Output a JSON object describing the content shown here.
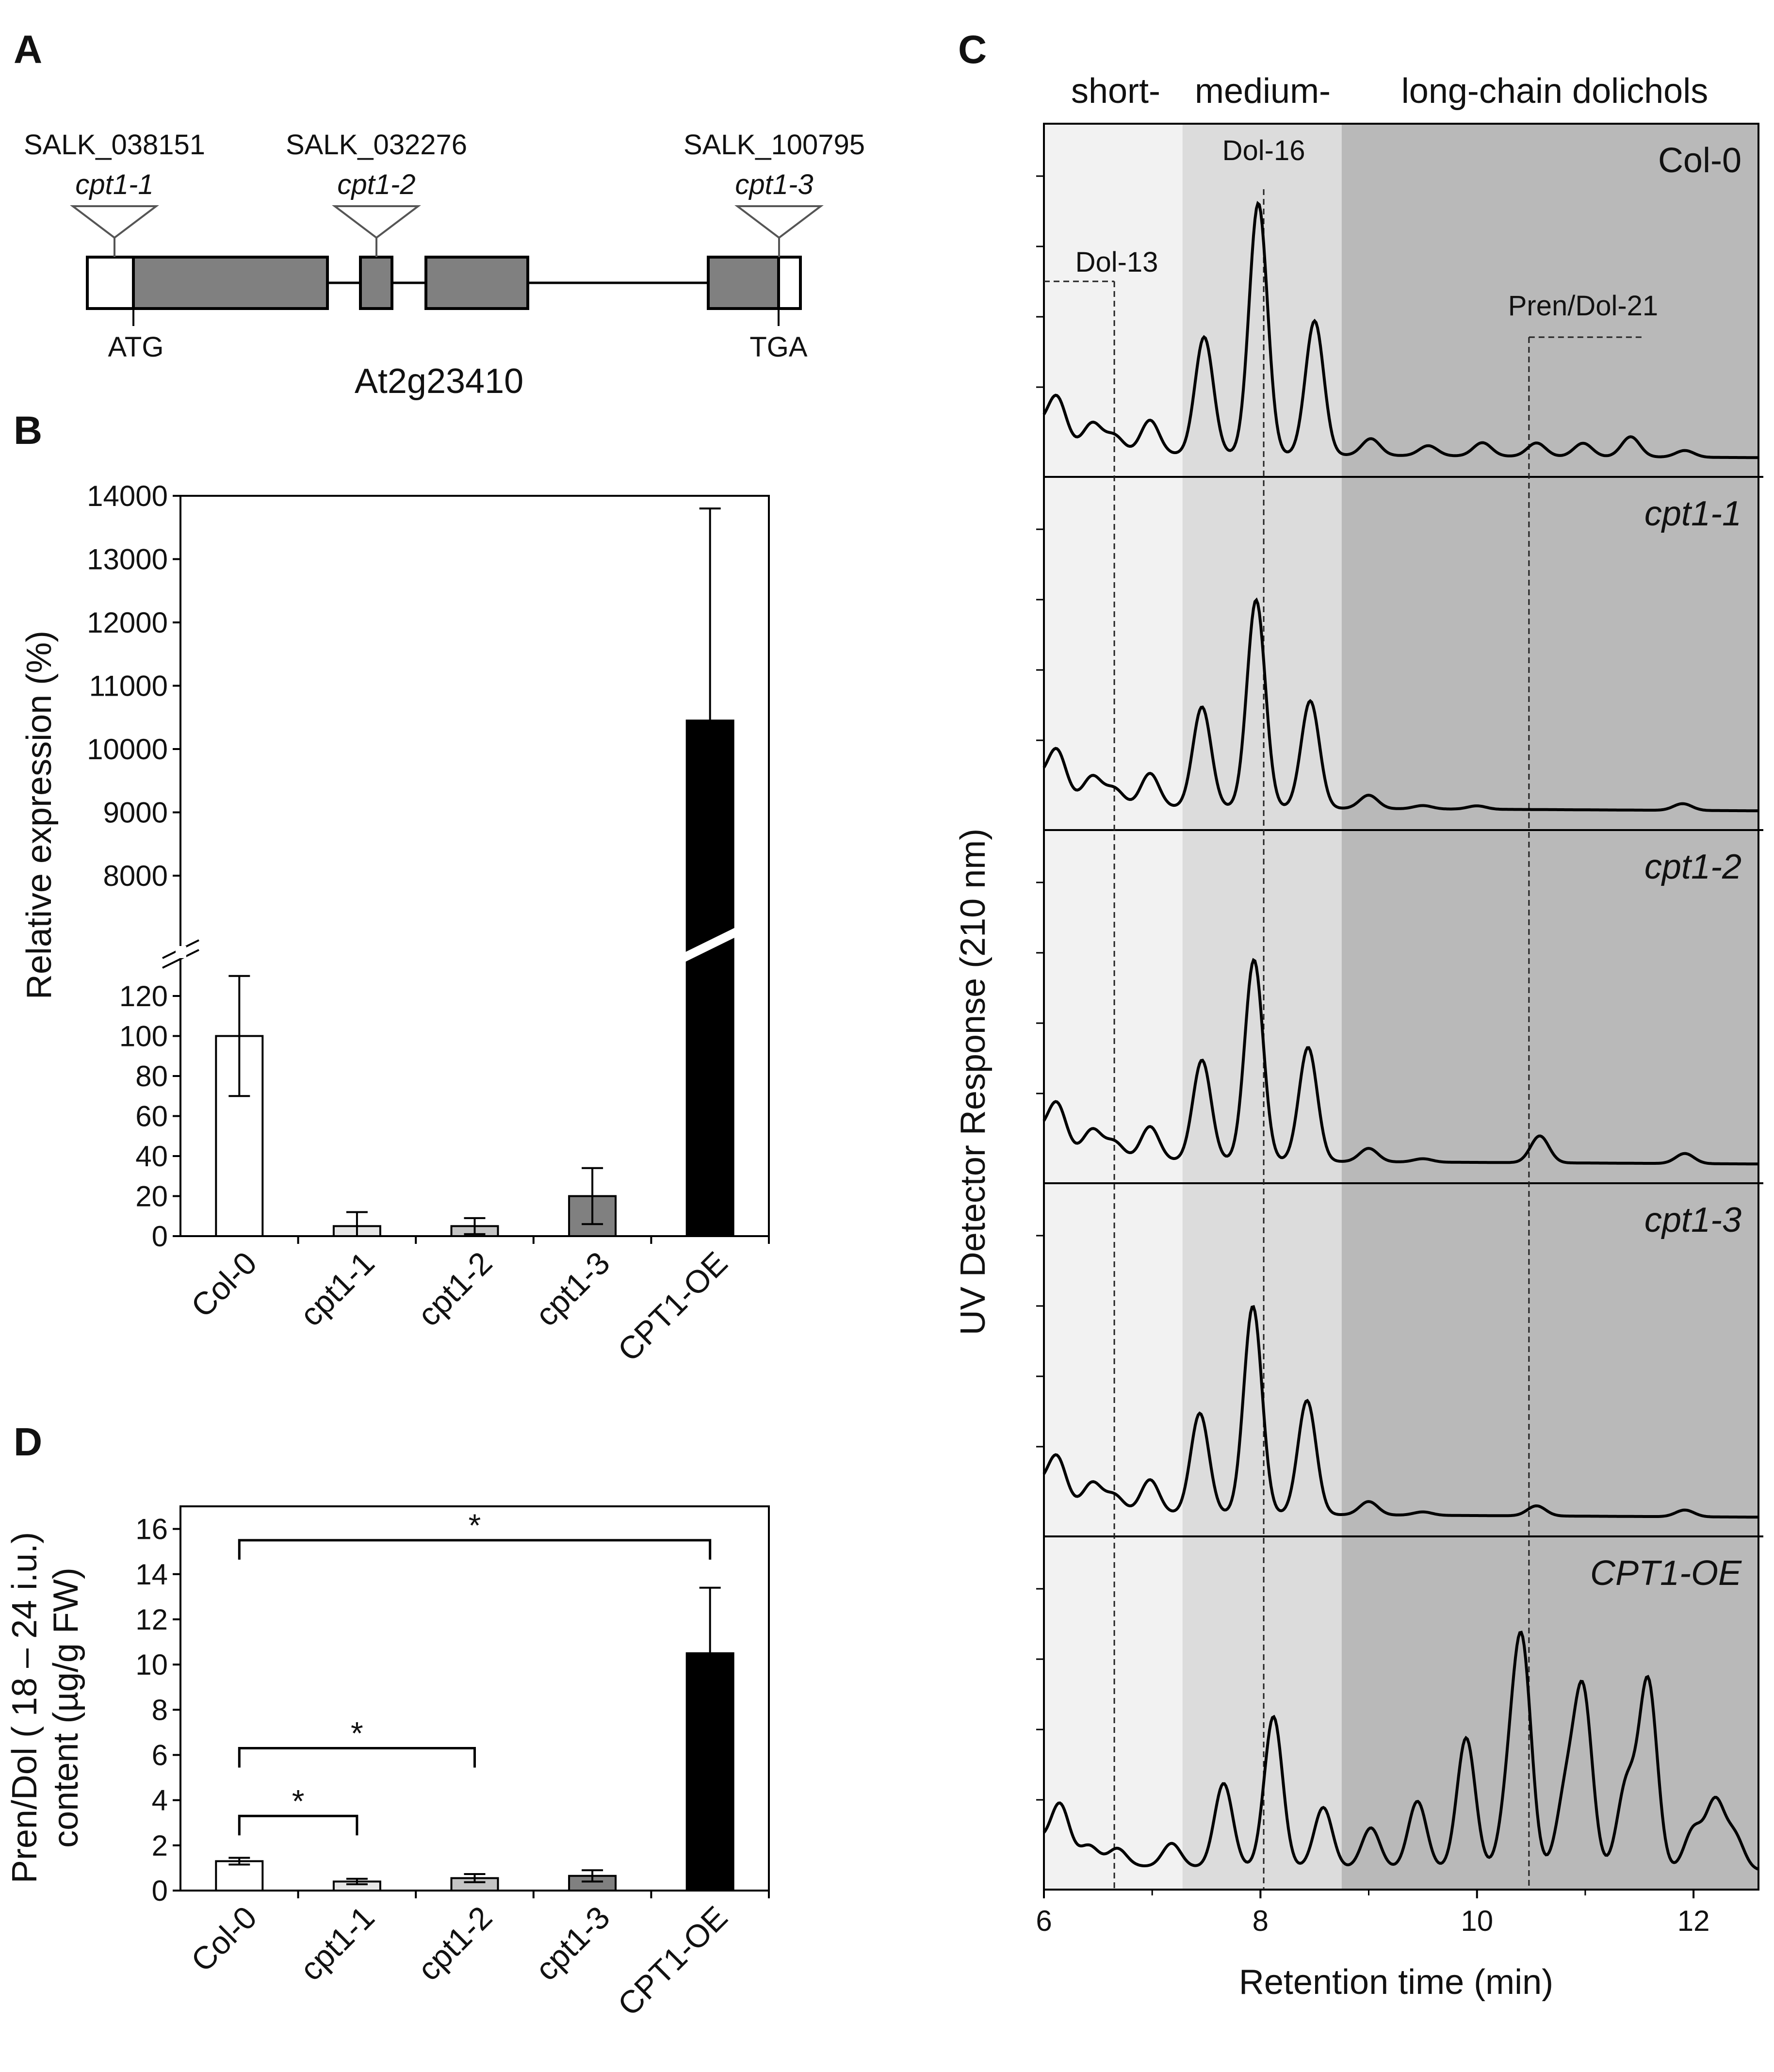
{
  "panel_labels": {
    "a": "A",
    "b": "B",
    "c": "C",
    "d": "D"
  },
  "panel_a": {
    "gene": "At2g23410",
    "start_codon": "ATG",
    "stop_codon": "TGA",
    "insertions": [
      {
        "line": "SALK_038151",
        "allele": "cpt1-1"
      },
      {
        "line": "SALK_032276",
        "allele": "cpt1-2"
      },
      {
        "line": "SALK_100795",
        "allele": "cpt1-3"
      }
    ],
    "colors": {
      "exon": "#808080",
      "utr": "#ffffff"
    }
  },
  "panel_c": {
    "region_labels": {
      "short": "short-",
      "medium": "medium-",
      "long": "long-chain dolichols"
    },
    "peak_labels": {
      "dol13": "Dol-13",
      "dol16": "Dol-16",
      "pren21": "Pren/Dol-21"
    },
    "traces": [
      {
        "label": "Col-0",
        "italic": false
      },
      {
        "label": "cpt1-1",
        "italic": true
      },
      {
        "label": "cpt1-2",
        "italic": true
      },
      {
        "label": "cpt1-3",
        "italic": true
      },
      {
        "label": "CPT1-OE",
        "italic": true
      }
    ],
    "colors": {
      "short": "#f2f2f2",
      "medium": "#dcdcdc",
      "long": "#b9b9b9"
    }
  },
  "chart_data": [
    {
      "type": "bar",
      "panel": "B",
      "ylabel": "Relative expression  (%)",
      "categories": [
        "Col-0",
        "cpt1-1",
        "cpt1-2",
        "cpt1-3",
        "CPT1-OE"
      ],
      "values": [
        100,
        5,
        5,
        20,
        10450
      ],
      "errors": [
        30,
        7,
        4,
        14,
        3350
      ],
      "colors": [
        "#ffffff",
        "#e6e6e6",
        "#c4c4c4",
        "#808080",
        "#000000"
      ],
      "axis_break": {
        "lower_ylim": [
          0,
          130
        ],
        "upper_ylim": [
          7500,
          14000
        ]
      },
      "lower_ticks": [
        "0",
        "20",
        "40",
        "60",
        "80",
        "100",
        "120"
      ],
      "upper_ticks": [
        "8000",
        "9000",
        "10000",
        "11000",
        "12000",
        "13000",
        "14000"
      ]
    },
    {
      "type": "line",
      "panel": "C",
      "xlabel": "Retention time (min)",
      "ylabel": "UV Detector Response (210 nm)",
      "xlim": [
        6,
        12.6
      ],
      "x_ticks": [
        "6",
        "8",
        "10",
        "12"
      ],
      "regions": [
        {
          "name": "short-chain",
          "from": 6,
          "to": 7.28
        },
        {
          "name": "medium-chain",
          "from": 7.28,
          "to": 8.75
        },
        {
          "name": "long-chain",
          "from": 8.75,
          "to": 12.6
        }
      ],
      "reference_lines": [
        {
          "name": "Dol-13",
          "x": 6.65
        },
        {
          "name": "Dol-16",
          "x": 8.03
        },
        {
          "name": "Pren/Dol-21",
          "x": 10.48
        }
      ],
      "series": [
        {
          "name": "Col-0",
          "peaks": [
            {
              "x": 6.12,
              "h": 0.13
            },
            {
              "x": 6.45,
              "h": 0.08
            },
            {
              "x": 6.65,
              "h": 0.05
            },
            {
              "x": 6.98,
              "h": 0.1
            },
            {
              "x": 7.48,
              "h": 0.35
            },
            {
              "x": 7.98,
              "h": 0.75
            },
            {
              "x": 8.5,
              "h": 0.4
            },
            {
              "x": 9.02,
              "h": 0.05
            },
            {
              "x": 9.55,
              "h": 0.03
            },
            {
              "x": 10.05,
              "h": 0.04
            },
            {
              "x": 10.55,
              "h": 0.04
            },
            {
              "x": 10.98,
              "h": 0.04
            },
            {
              "x": 11.42,
              "h": 0.06
            },
            {
              "x": 11.92,
              "h": 0.02
            }
          ]
        },
        {
          "name": "cpt1-1",
          "peaks": [
            {
              "x": 6.12,
              "h": 0.13
            },
            {
              "x": 6.45,
              "h": 0.08
            },
            {
              "x": 6.65,
              "h": 0.05
            },
            {
              "x": 6.98,
              "h": 0.1
            },
            {
              "x": 7.46,
              "h": 0.3
            },
            {
              "x": 7.96,
              "h": 0.62
            },
            {
              "x": 8.46,
              "h": 0.32
            },
            {
              "x": 9.0,
              "h": 0.04
            },
            {
              "x": 9.5,
              "h": 0.01
            },
            {
              "x": 10.0,
              "h": 0.01
            },
            {
              "x": 11.9,
              "h": 0.02
            }
          ]
        },
        {
          "name": "cpt1-2",
          "peaks": [
            {
              "x": 6.12,
              "h": 0.13
            },
            {
              "x": 6.45,
              "h": 0.08
            },
            {
              "x": 6.65,
              "h": 0.05
            },
            {
              "x": 6.98,
              "h": 0.1
            },
            {
              "x": 7.46,
              "h": 0.3
            },
            {
              "x": 7.94,
              "h": 0.6
            },
            {
              "x": 8.44,
              "h": 0.34
            },
            {
              "x": 9.0,
              "h": 0.04
            },
            {
              "x": 9.5,
              "h": 0.01
            },
            {
              "x": 10.58,
              "h": 0.08
            },
            {
              "x": 11.92,
              "h": 0.03
            }
          ]
        },
        {
          "name": "cpt1-3",
          "peaks": [
            {
              "x": 6.12,
              "h": 0.13
            },
            {
              "x": 6.45,
              "h": 0.08
            },
            {
              "x": 6.65,
              "h": 0.05
            },
            {
              "x": 6.98,
              "h": 0.1
            },
            {
              "x": 7.44,
              "h": 0.3
            },
            {
              "x": 7.93,
              "h": 0.62
            },
            {
              "x": 8.43,
              "h": 0.34
            },
            {
              "x": 9.0,
              "h": 0.04
            },
            {
              "x": 9.5,
              "h": 0.01
            },
            {
              "x": 10.55,
              "h": 0.03
            },
            {
              "x": 11.92,
              "h": 0.02
            }
          ]
        },
        {
          "name": "CPT1-OE",
          "peaks": [
            {
              "x": 6.15,
              "h": 0.15
            },
            {
              "x": 6.42,
              "h": 0.05
            },
            {
              "x": 6.68,
              "h": 0.05
            },
            {
              "x": 7.18,
              "h": 0.07
            },
            {
              "x": 7.66,
              "h": 0.25
            },
            {
              "x": 8.12,
              "h": 0.45
            },
            {
              "x": 8.58,
              "h": 0.18
            },
            {
              "x": 9.02,
              "h": 0.12
            },
            {
              "x": 9.45,
              "h": 0.2
            },
            {
              "x": 9.9,
              "h": 0.39
            },
            {
              "x": 10.3,
              "h": 0.21
            },
            {
              "x": 10.42,
              "h": 0.62
            },
            {
              "x": 10.82,
              "h": 0.22
            },
            {
              "x": 10.98,
              "h": 0.52
            },
            {
              "x": 11.38,
              "h": 0.25
            },
            {
              "x": 11.58,
              "h": 0.56
            },
            {
              "x": 12.0,
              "h": 0.12
            },
            {
              "x": 12.2,
              "h": 0.2
            },
            {
              "x": 12.38,
              "h": 0.1
            }
          ]
        }
      ]
    },
    {
      "type": "bar",
      "panel": "D",
      "ylabel_line1": "Pren/Dol ( 18 – 24 i.u.)",
      "ylabel_line2": "content (µg/g FW)",
      "categories": [
        "Col-0",
        "cpt1-1",
        "cpt1-2",
        "cpt1-3",
        "CPT1-OE"
      ],
      "values": [
        1.3,
        0.4,
        0.55,
        0.65,
        10.5
      ],
      "errors": [
        0.15,
        0.12,
        0.18,
        0.25,
        2.9
      ],
      "colors": [
        "#ffffff",
        "#e6e6e6",
        "#c4c4c4",
        "#808080",
        "#000000"
      ],
      "ylim": [
        0,
        17
      ],
      "y_ticks": [
        "0",
        "2",
        "4",
        "6",
        "8",
        "10",
        "12",
        "14",
        "16"
      ],
      "significance": [
        {
          "from": 0,
          "to": 1,
          "level": 3.3,
          "label": "*"
        },
        {
          "from": 0,
          "to": 2,
          "level": 6.3,
          "label": "*"
        },
        {
          "from": 0,
          "to": 4,
          "level": 15.5,
          "label": "*"
        }
      ]
    }
  ]
}
